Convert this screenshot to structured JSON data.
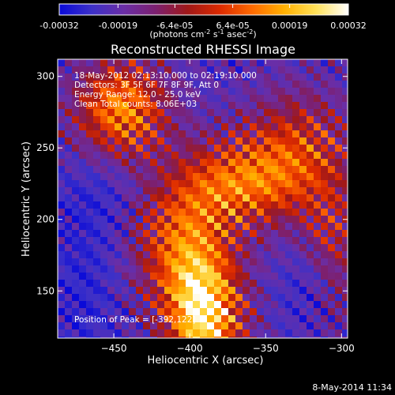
{
  "chart_data": {
    "type": "heatmap",
    "title": "Reconstructed RHESSI Image",
    "xlabel": "Heliocentric X (arcsec)",
    "ylabel": "Heliocentric Y (arcsec)",
    "xlim": [
      -487,
      -296
    ],
    "ylim": [
      117,
      312
    ],
    "x_ticks": [
      -450,
      -400,
      -350,
      -300
    ],
    "y_ticks": [
      150,
      200,
      250,
      300
    ],
    "colorbar": {
      "min": -0.00032,
      "max": 0.00032,
      "tick_values": [
        -0.00032,
        -0.00019,
        -6.4e-05,
        6.4e-05,
        0.00019,
        0.00032
      ],
      "tick_labels": [
        "-0.00032",
        "-0.00019",
        "-6.4e-05",
        "6.4e-05",
        "0.00019",
        "0.00032"
      ],
      "label_parts": [
        "(photons cm",
        "-2",
        " s",
        "-1",
        " asec",
        "-2",
        ")"
      ],
      "colors": [
        "#0a0ad8",
        "#3c30c8",
        "#6a2ea6",
        "#7c2070",
        "#a01818",
        "#dc2a00",
        "#ff6a00",
        "#ffb000",
        "#ffe25a",
        "#ffffff"
      ]
    },
    "annotations": [
      "18-May-2012 02:13:10.000 to 02:19:10.000",
      "Detectors: 3F 5F 6F 7F 8F 9F, Att 0",
      "Energy Range: 12.0 - 25.0 keV",
      "Clean    Total counts: 8.06E+03"
    ],
    "peak_label": "Position of Peak = [-392,122]",
    "grid": false
  },
  "footer": {
    "date": "8-May-2014 11:34"
  }
}
